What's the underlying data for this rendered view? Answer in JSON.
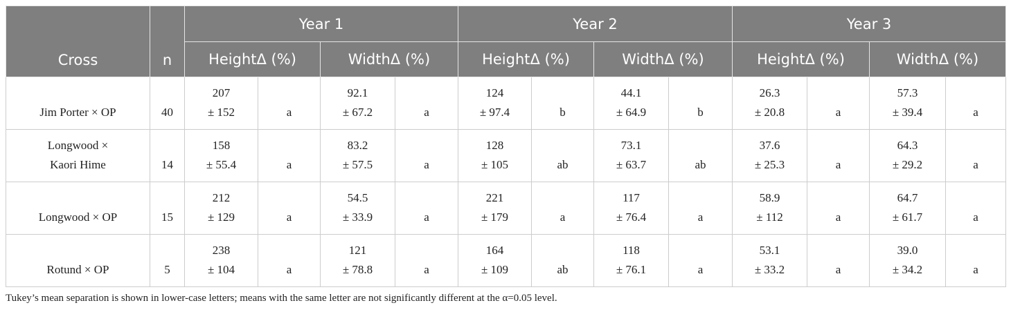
{
  "header": {
    "cross": "Cross",
    "n": "n",
    "years": [
      {
        "label": "Year 1",
        "metrics": [
          "HeightΔ (%)",
          "WidthΔ (%)"
        ]
      },
      {
        "label": "Year 2",
        "metrics": [
          "HeightΔ (%)",
          "WidthΔ (%)"
        ]
      },
      {
        "label": "Year 3",
        "metrics": [
          "HeightΔ (%)",
          "WidthΔ (%)"
        ]
      }
    ]
  },
  "rows": [
    {
      "cross": "Jim Porter × OP",
      "n": "40",
      "cells": [
        {
          "mean": "207",
          "sd": "± 152",
          "letter": "a"
        },
        {
          "mean": "92.1",
          "sd": "± 67.2",
          "letter": "a"
        },
        {
          "mean": "124",
          "sd": "± 97.4",
          "letter": "b"
        },
        {
          "mean": "44.1",
          "sd": "± 64.9",
          "letter": "b"
        },
        {
          "mean": "26.3",
          "sd": "± 20.8",
          "letter": "a"
        },
        {
          "mean": "57.3",
          "sd": "± 39.4",
          "letter": "a"
        }
      ]
    },
    {
      "cross": "Longwood × Kaori Hime",
      "n": "14",
      "cells": [
        {
          "mean": "158",
          "sd": "± 55.4",
          "letter": "a"
        },
        {
          "mean": "83.2",
          "sd": "± 57.5",
          "letter": "a"
        },
        {
          "mean": "128",
          "sd": "± 105",
          "letter": "ab"
        },
        {
          "mean": "73.1",
          "sd": "± 63.7",
          "letter": "ab"
        },
        {
          "mean": "37.6",
          "sd": "± 25.3",
          "letter": "a"
        },
        {
          "mean": "64.3",
          "sd": "± 29.2",
          "letter": "a"
        }
      ]
    },
    {
      "cross": "Longwood × OP",
      "n": "15",
      "cells": [
        {
          "mean": "212",
          "sd": "± 129",
          "letter": "a"
        },
        {
          "mean": "54.5",
          "sd": "± 33.9",
          "letter": "a"
        },
        {
          "mean": "221",
          "sd": "± 179",
          "letter": "a"
        },
        {
          "mean": "117",
          "sd": "± 76.4",
          "letter": "a"
        },
        {
          "mean": "58.9",
          "sd": "± 112",
          "letter": "a"
        },
        {
          "mean": "64.7",
          "sd": "± 61.7",
          "letter": "a"
        }
      ]
    },
    {
      "cross": "Rotund × OP",
      "n": "5",
      "cells": [
        {
          "mean": "238",
          "sd": "± 104",
          "letter": "a"
        },
        {
          "mean": "121",
          "sd": "± 78.8",
          "letter": "a"
        },
        {
          "mean": "164",
          "sd": "± 109",
          "letter": "ab"
        },
        {
          "mean": "118",
          "sd": "± 76.1",
          "letter": "a"
        },
        {
          "mean": "53.1",
          "sd": "± 33.2",
          "letter": "a"
        },
        {
          "mean": "39.0",
          "sd": "± 34.2",
          "letter": "a"
        }
      ]
    }
  ],
  "footnote": "Tukey’s mean separation is shown in lower-case letters; means with the same letter are not significantly different at the α=0.05 level."
}
